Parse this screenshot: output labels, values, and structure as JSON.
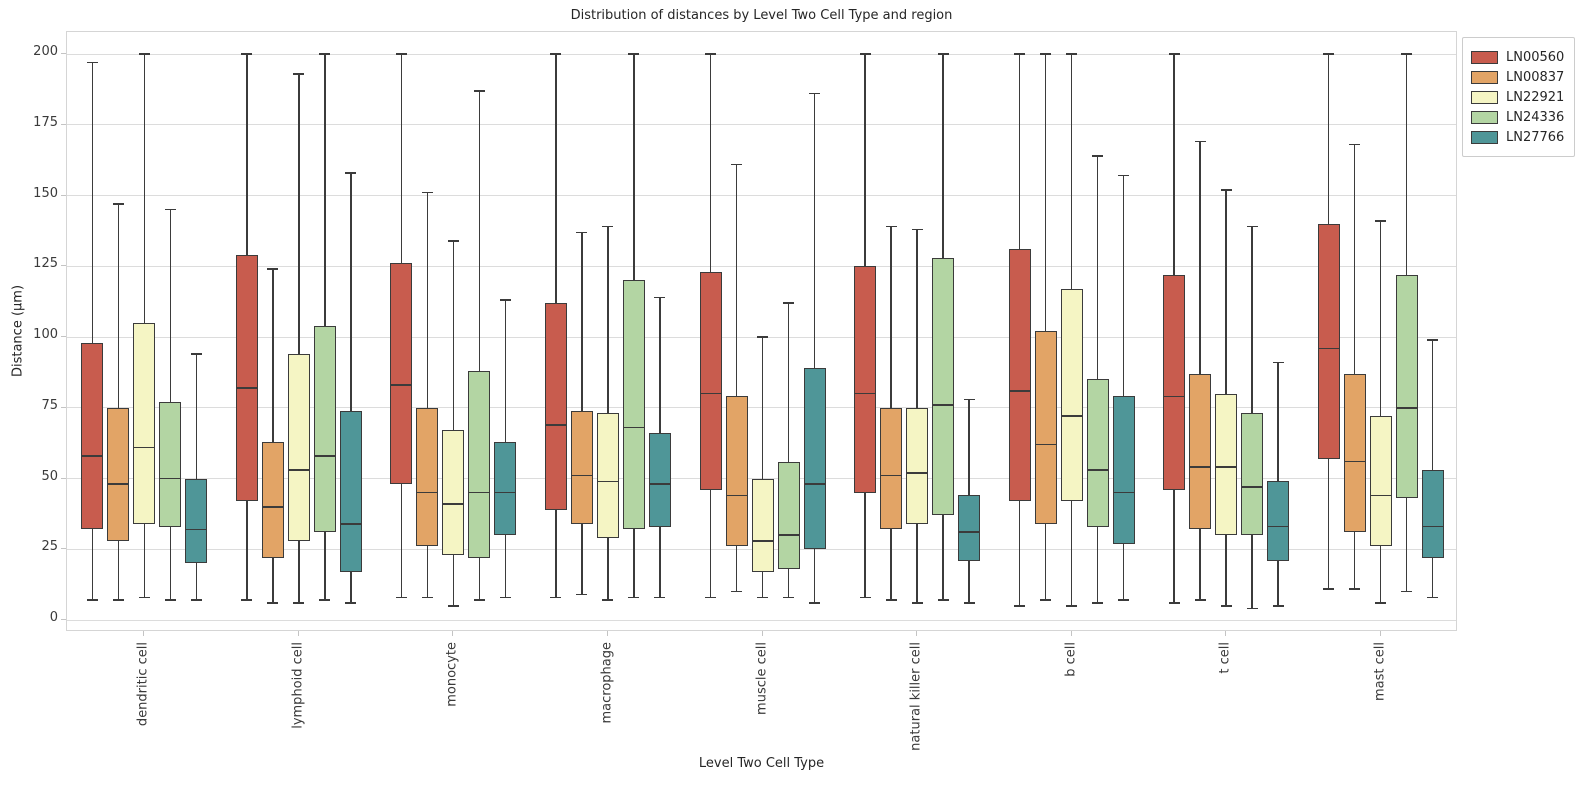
{
  "title": "Distribution of distances by Level Two Cell Type and region",
  "chart_data": {
    "type": "box",
    "title": "Distribution of distances by Level Two Cell Type and region",
    "xlabel": "Level Two Cell Type",
    "ylabel": "Distance (μm)",
    "ylim": [
      0,
      200
    ],
    "yticks": [
      0,
      25,
      50,
      75,
      100,
      125,
      150,
      175,
      200
    ],
    "grid": true,
    "legend_position": "upper right outside",
    "categories": [
      "dendritic cell",
      "lymphoid cell",
      "monocyte",
      "macrophage",
      "muscle cell",
      "natural killer cell",
      "b cell",
      "t cell",
      "mast cell"
    ],
    "box_value_order": [
      "whisker_low",
      "q1",
      "median",
      "q3",
      "whisker_high"
    ],
    "series": [
      {
        "name": "LN00560",
        "color": "#c85c4e",
        "boxes": [
          [
            7,
            32,
            58,
            98,
            197
          ],
          [
            7,
            42,
            82,
            129,
            200
          ],
          [
            8,
            48,
            83,
            126,
            200
          ],
          [
            8,
            39,
            69,
            112,
            200
          ],
          [
            8,
            46,
            80,
            123,
            200
          ],
          [
            8,
            45,
            80,
            125,
            200
          ],
          [
            5,
            42,
            81,
            131,
            200
          ],
          [
            6,
            46,
            79,
            122,
            200
          ],
          [
            11,
            57,
            96,
            140,
            200
          ]
        ]
      },
      {
        "name": "LN00837",
        "color": "#e2a466",
        "boxes": [
          [
            7,
            28,
            48,
            75,
            147
          ],
          [
            6,
            22,
            40,
            63,
            124
          ],
          [
            8,
            26,
            45,
            75,
            151
          ],
          [
            9,
            34,
            51,
            74,
            137
          ],
          [
            10,
            26,
            44,
            79,
            161
          ],
          [
            7,
            32,
            51,
            75,
            139
          ],
          [
            7,
            34,
            62,
            102,
            200
          ],
          [
            7,
            32,
            54,
            87,
            169
          ],
          [
            11,
            31,
            56,
            87,
            168
          ]
        ]
      },
      {
        "name": "LN22921",
        "color": "#f5f5c4",
        "boxes": [
          [
            8,
            34,
            61,
            105,
            200
          ],
          [
            6,
            28,
            53,
            94,
            193
          ],
          [
            5,
            23,
            41,
            67,
            134
          ],
          [
            7,
            29,
            49,
            73,
            139
          ],
          [
            8,
            17,
            28,
            50,
            100
          ],
          [
            6,
            34,
            52,
            75,
            138
          ],
          [
            5,
            42,
            72,
            117,
            200
          ],
          [
            5,
            30,
            54,
            80,
            152
          ],
          [
            6,
            26,
            44,
            72,
            141
          ]
        ]
      },
      {
        "name": "LN24336",
        "color": "#b3d5a3",
        "boxes": [
          [
            7,
            33,
            50,
            77,
            145
          ],
          [
            7,
            31,
            58,
            104,
            200
          ],
          [
            7,
            22,
            45,
            88,
            187
          ],
          [
            8,
            32,
            68,
            120,
            200
          ],
          [
            8,
            18,
            30,
            56,
            112
          ],
          [
            7,
            37,
            76,
            128,
            200
          ],
          [
            6,
            33,
            53,
            85,
            164
          ],
          [
            4,
            30,
            47,
            73,
            139
          ],
          [
            10,
            43,
            75,
            122,
            200
          ]
        ]
      },
      {
        "name": "LN27766",
        "color": "#4f9698",
        "boxes": [
          [
            7,
            20,
            32,
            50,
            94
          ],
          [
            6,
            17,
            34,
            74,
            158
          ],
          [
            8,
            30,
            45,
            63,
            113
          ],
          [
            8,
            33,
            48,
            66,
            114
          ],
          [
            6,
            25,
            48,
            89,
            186
          ],
          [
            6,
            21,
            31,
            44,
            78
          ],
          [
            7,
            27,
            45,
            79,
            157
          ],
          [
            5,
            21,
            33,
            49,
            91
          ],
          [
            8,
            22,
            33,
            53,
            99
          ]
        ]
      }
    ]
  }
}
